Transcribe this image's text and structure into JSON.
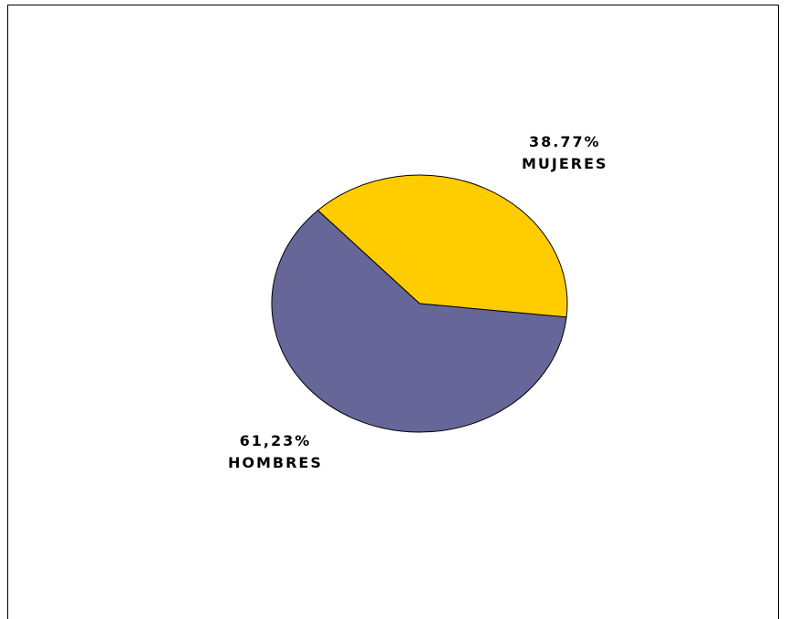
{
  "chart_data": {
    "type": "pie",
    "title": "",
    "slices": [
      {
        "label": "MUJERES",
        "percent_text": "38.77%",
        "value": 38.77,
        "color": "#ffcc00"
      },
      {
        "label": "HOMBRES",
        "percent_text": "61,23%",
        "value": 61.23,
        "color": "#666699"
      }
    ],
    "legend": "none"
  }
}
